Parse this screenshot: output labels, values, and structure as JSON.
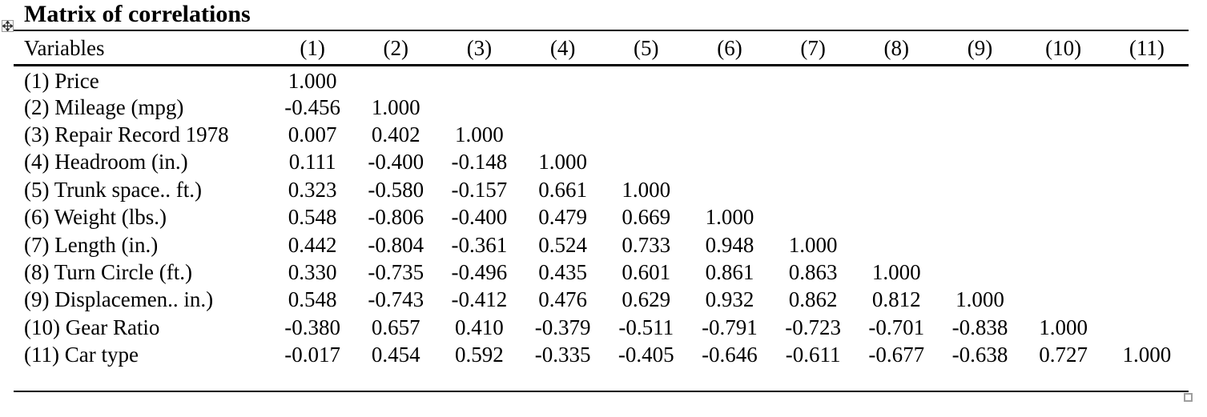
{
  "title": "Matrix of correlations",
  "table": {
    "variables_header": "Variables",
    "column_headers": [
      "(1)",
      "(2)",
      "(3)",
      "(4)",
      "(5)",
      "(6)",
      "(7)",
      "(8)",
      "(9)",
      "(10)",
      "(11)"
    ],
    "rows": [
      {
        "label": "(1) Price",
        "values": [
          "1.000"
        ]
      },
      {
        "label": "(2) Mileage (mpg)",
        "values": [
          "-0.456",
          "1.000"
        ]
      },
      {
        "label": "(3) Repair Record 1978",
        "values": [
          "0.007",
          "0.402",
          "1.000"
        ]
      },
      {
        "label": "(4) Headroom (in.)",
        "values": [
          "0.111",
          "-0.400",
          "-0.148",
          "1.000"
        ]
      },
      {
        "label": "(5) Trunk space.. ft.)",
        "values": [
          "0.323",
          "-0.580",
          "-0.157",
          "0.661",
          "1.000"
        ]
      },
      {
        "label": "(6) Weight (lbs.)",
        "values": [
          "0.548",
          "-0.806",
          "-0.400",
          "0.479",
          "0.669",
          "1.000"
        ]
      },
      {
        "label": "(7) Length (in.)",
        "values": [
          "0.442",
          "-0.804",
          "-0.361",
          "0.524",
          "0.733",
          "0.948",
          "1.000"
        ]
      },
      {
        "label": "(8) Turn Circle (ft.)",
        "values": [
          "0.330",
          "-0.735",
          "-0.496",
          "0.435",
          "0.601",
          "0.861",
          "0.863",
          "1.000"
        ]
      },
      {
        "label": "(9) Displacemen.. in.)",
        "values": [
          "0.548",
          "-0.743",
          "-0.412",
          "0.476",
          "0.629",
          "0.932",
          "0.862",
          "0.812",
          "1.000"
        ]
      },
      {
        "label": "(10) Gear Ratio",
        "values": [
          "-0.380",
          "0.657",
          "0.410",
          "-0.379",
          "-0.511",
          "-0.791",
          "-0.723",
          "-0.701",
          "-0.838",
          "1.000"
        ]
      },
      {
        "label": "(11) Car type",
        "values": [
          "-0.017",
          "0.454",
          "0.592",
          "-0.335",
          "-0.405",
          "-0.646",
          "-0.611",
          "-0.677",
          "-0.638",
          "0.727",
          "1.000"
        ]
      }
    ]
  },
  "icons": {
    "move_handle": "table-move-handle",
    "resize_handle": "table-resize-handle"
  },
  "colors": {
    "text": "#000000",
    "rule": "#000000",
    "handle_border": "#9e9e9e"
  }
}
